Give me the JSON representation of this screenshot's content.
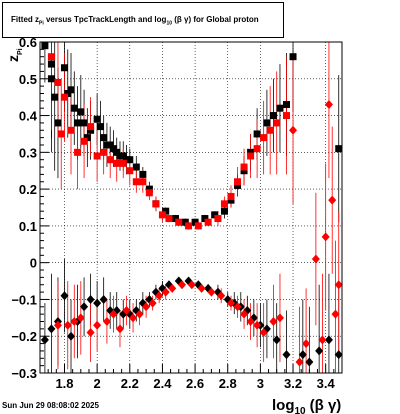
{
  "header": {
    "title_parts": [
      "Fitted  z",
      "Pi",
      "  versus TpcTrackLength and log",
      "10",
      " (β  γ) for Global proton"
    ]
  },
  "footer": {
    "datestamp": "Sun Jun 29 08:08:02 2025"
  },
  "axes": {
    "xlabel_main": "log",
    "xlabel_sub": "10",
    "xlabel_rest": "(β γ)",
    "ylabel_main": "z",
    "ylabel_sub": "Pi"
  },
  "colors": {
    "black_series": "#000000",
    "red_series": "#ff0000",
    "grid": "#000000"
  },
  "chart_data": {
    "type": "scatter",
    "xlim": [
      1.65,
      3.5
    ],
    "ylim": [
      -0.3,
      0.6
    ],
    "x_ticks": [
      1.8,
      2.0,
      2.2,
      2.4,
      2.6,
      2.8,
      3.0,
      3.2,
      3.4
    ],
    "x_tick_labels": [
      "1.8",
      "2",
      "2.2",
      "2.4",
      "2.6",
      "2.8",
      "3",
      "3.2",
      "3.4"
    ],
    "y_ticks": [
      -0.3,
      -0.2,
      -0.1,
      0,
      0.1,
      0.2,
      0.3,
      0.4,
      0.5,
      0.6
    ],
    "y_tick_labels": [
      "−0.3",
      "−0.2",
      "−0.1",
      "0",
      "0.1",
      "0.2",
      "0.3",
      "0.4",
      "0.5",
      "0.6"
    ],
    "grid": true,
    "series": [
      {
        "color": "#000000",
        "marker": "square",
        "points": [
          [
            1.68,
            0.59,
            0.1
          ],
          [
            1.72,
            0.54,
            0.2
          ],
          [
            1.72,
            0.5,
            0.2
          ],
          [
            1.74,
            0.45,
            0.2
          ],
          [
            1.76,
            0.38,
            0.15
          ],
          [
            1.8,
            0.53,
            0.12
          ],
          [
            1.82,
            0.46,
            0.12
          ],
          [
            1.84,
            0.47,
            0.1
          ],
          [
            1.86,
            0.42,
            0.1
          ],
          [
            1.88,
            0.38,
            0.1
          ],
          [
            1.9,
            0.41,
            0.1
          ],
          [
            1.92,
            0.38,
            0.09
          ],
          [
            1.94,
            0.34,
            0.08
          ],
          [
            1.96,
            0.36,
            0.08
          ],
          [
            2.0,
            0.39,
            0.07
          ],
          [
            2.02,
            0.37,
            0.07
          ],
          [
            2.04,
            0.34,
            0.06
          ],
          [
            2.06,
            0.32,
            0.06
          ],
          [
            2.08,
            0.32,
            0.05
          ],
          [
            2.1,
            0.31,
            0.05
          ],
          [
            2.12,
            0.3,
            0.04
          ],
          [
            2.14,
            0.29,
            0.04
          ],
          [
            2.16,
            0.29,
            0.04
          ],
          [
            2.18,
            0.28,
            0.04
          ],
          [
            2.2,
            0.28,
            0.03
          ],
          [
            2.24,
            0.26,
            0.03
          ],
          [
            2.28,
            0.24,
            0.02
          ],
          [
            2.32,
            0.2,
            0.02
          ],
          [
            2.36,
            0.16,
            0.02
          ],
          [
            2.42,
            0.14,
            0.01
          ],
          [
            2.48,
            0.12,
            0.01
          ],
          [
            2.54,
            0.11,
            0.01
          ],
          [
            2.6,
            0.11,
            0.01
          ],
          [
            2.66,
            0.12,
            0.01
          ],
          [
            2.72,
            0.13,
            0.01
          ],
          [
            2.78,
            0.14,
            0.02
          ],
          [
            2.82,
            0.17,
            0.02
          ],
          [
            2.86,
            0.21,
            0.03
          ],
          [
            2.9,
            0.25,
            0.04
          ],
          [
            2.94,
            0.3,
            0.05
          ],
          [
            2.98,
            0.35,
            0.07
          ],
          [
            3.04,
            0.38,
            0.09
          ],
          [
            3.08,
            0.4,
            0.1
          ],
          [
            3.12,
            0.42,
            0.12
          ],
          [
            3.16,
            0.43,
            0.14
          ],
          [
            3.2,
            0.56,
            0.15
          ],
          [
            3.48,
            0.31,
            0.2
          ]
        ]
      },
      {
        "color": "#ff0000",
        "marker": "square",
        "points": [
          [
            1.72,
            0.56,
            0.2
          ],
          [
            1.76,
            0.49,
            0.15
          ],
          [
            1.78,
            0.35,
            0.15
          ],
          [
            1.8,
            0.45,
            0.12
          ],
          [
            1.84,
            0.36,
            0.12
          ],
          [
            1.88,
            0.3,
            0.1
          ],
          [
            1.92,
            0.33,
            0.1
          ],
          [
            1.96,
            0.37,
            0.08
          ],
          [
            2.0,
            0.29,
            0.07
          ],
          [
            2.04,
            0.3,
            0.06
          ],
          [
            2.08,
            0.28,
            0.05
          ],
          [
            2.12,
            0.27,
            0.05
          ],
          [
            2.16,
            0.27,
            0.04
          ],
          [
            2.2,
            0.25,
            0.04
          ],
          [
            2.24,
            0.22,
            0.03
          ],
          [
            2.28,
            0.22,
            0.03
          ],
          [
            2.32,
            0.19,
            0.02
          ],
          [
            2.36,
            0.16,
            0.02
          ],
          [
            2.4,
            0.13,
            0.02
          ],
          [
            2.44,
            0.12,
            0.01
          ],
          [
            2.5,
            0.11,
            0.01
          ],
          [
            2.56,
            0.1,
            0.01
          ],
          [
            2.62,
            0.1,
            0.01
          ],
          [
            2.68,
            0.11,
            0.01
          ],
          [
            2.74,
            0.12,
            0.02
          ],
          [
            2.78,
            0.16,
            0.02
          ],
          [
            2.82,
            0.18,
            0.03
          ],
          [
            2.86,
            0.22,
            0.04
          ],
          [
            2.9,
            0.26,
            0.05
          ],
          [
            2.94,
            0.29,
            0.06
          ],
          [
            2.98,
            0.31,
            0.08
          ],
          [
            3.02,
            0.34,
            0.1
          ],
          [
            3.06,
            0.36,
            0.12
          ],
          [
            3.1,
            0.38,
            0.14
          ],
          [
            3.16,
            0.4,
            0.16
          ]
        ]
      },
      {
        "color": "#000000",
        "marker": "diamond",
        "points": [
          [
            1.68,
            -0.21,
            0.1
          ],
          [
            1.72,
            -0.18,
            0.15
          ],
          [
            1.76,
            -0.16,
            0.12
          ],
          [
            1.8,
            -0.09,
            0.1
          ],
          [
            1.84,
            -0.2,
            0.1
          ],
          [
            1.88,
            -0.16,
            0.1
          ],
          [
            1.92,
            -0.12,
            0.08
          ],
          [
            1.96,
            -0.1,
            0.07
          ],
          [
            2.0,
            -0.11,
            0.06
          ],
          [
            2.04,
            -0.1,
            0.06
          ],
          [
            2.08,
            -0.13,
            0.05
          ],
          [
            2.12,
            -0.13,
            0.05
          ],
          [
            2.16,
            -0.14,
            0.04
          ],
          [
            2.2,
            -0.14,
            0.04
          ],
          [
            2.24,
            -0.13,
            0.03
          ],
          [
            2.28,
            -0.11,
            0.03
          ],
          [
            2.32,
            -0.1,
            0.02
          ],
          [
            2.36,
            -0.08,
            0.02
          ],
          [
            2.4,
            -0.07,
            0.02
          ],
          [
            2.44,
            -0.06,
            0.01
          ],
          [
            2.5,
            -0.05,
            0.01
          ],
          [
            2.56,
            -0.05,
            0.01
          ],
          [
            2.62,
            -0.06,
            0.01
          ],
          [
            2.68,
            -0.07,
            0.01
          ],
          [
            2.74,
            -0.08,
            0.02
          ],
          [
            2.8,
            -0.1,
            0.02
          ],
          [
            2.84,
            -0.11,
            0.03
          ],
          [
            2.88,
            -0.12,
            0.04
          ],
          [
            2.92,
            -0.13,
            0.04
          ],
          [
            2.96,
            -0.15,
            0.05
          ],
          [
            3.0,
            -0.17,
            0.06
          ],
          [
            3.04,
            -0.18,
            0.08
          ],
          [
            3.1,
            -0.21,
            0.1
          ],
          [
            3.16,
            -0.25,
            0.12
          ],
          [
            3.26,
            -0.25,
            0.15
          ],
          [
            3.3,
            -0.27,
            0.15
          ],
          [
            3.36,
            -0.24,
            0.18
          ],
          [
            3.42,
            -0.21,
            0.18
          ],
          [
            3.48,
            -0.25,
            0.2
          ]
        ]
      },
      {
        "color": "#ff0000",
        "marker": "diamond",
        "points": [
          [
            1.76,
            -0.17,
            0.12
          ],
          [
            1.82,
            -0.17,
            0.12
          ],
          [
            1.86,
            -0.16,
            0.1
          ],
          [
            1.9,
            -0.15,
            0.1
          ],
          [
            1.96,
            -0.19,
            0.08
          ],
          [
            2.0,
            -0.17,
            0.07
          ],
          [
            2.06,
            -0.16,
            0.06
          ],
          [
            2.1,
            -0.14,
            0.05
          ],
          [
            2.14,
            -0.18,
            0.05
          ],
          [
            2.18,
            -0.13,
            0.04
          ],
          [
            2.22,
            -0.15,
            0.04
          ],
          [
            2.26,
            -0.14,
            0.03
          ],
          [
            2.3,
            -0.12,
            0.03
          ],
          [
            2.34,
            -0.11,
            0.02
          ],
          [
            2.38,
            -0.09,
            0.02
          ],
          [
            2.42,
            -0.08,
            0.02
          ],
          [
            2.46,
            -0.07,
            0.01
          ],
          [
            2.52,
            -0.06,
            0.01
          ],
          [
            2.58,
            -0.06,
            0.01
          ],
          [
            2.64,
            -0.07,
            0.01
          ],
          [
            2.7,
            -0.08,
            0.01
          ],
          [
            2.76,
            -0.09,
            0.02
          ],
          [
            2.82,
            -0.11,
            0.02
          ],
          [
            2.86,
            -0.12,
            0.03
          ],
          [
            2.9,
            -0.14,
            0.04
          ],
          [
            2.94,
            -0.16,
            0.05
          ],
          [
            2.98,
            -0.17,
            0.06
          ],
          [
            3.02,
            -0.19,
            0.08
          ],
          [
            3.08,
            -0.16,
            0.1
          ],
          [
            3.12,
            -0.15,
            0.12
          ],
          [
            3.2,
            0.36,
            0.2
          ],
          [
            3.24,
            -0.27,
            0.15
          ],
          [
            3.38,
            -0.21,
            0.18
          ],
          [
            3.4,
            0.07,
            0.2
          ],
          [
            3.42,
            0.43,
            0.2
          ],
          [
            3.44,
            0.17,
            0.2
          ],
          [
            3.46,
            -0.14,
            0.2
          ],
          [
            3.48,
            -0.06,
            0.2
          ],
          [
            3.28,
            -0.22,
            0.15
          ],
          [
            3.34,
            0.01,
            0.18
          ]
        ]
      }
    ]
  }
}
